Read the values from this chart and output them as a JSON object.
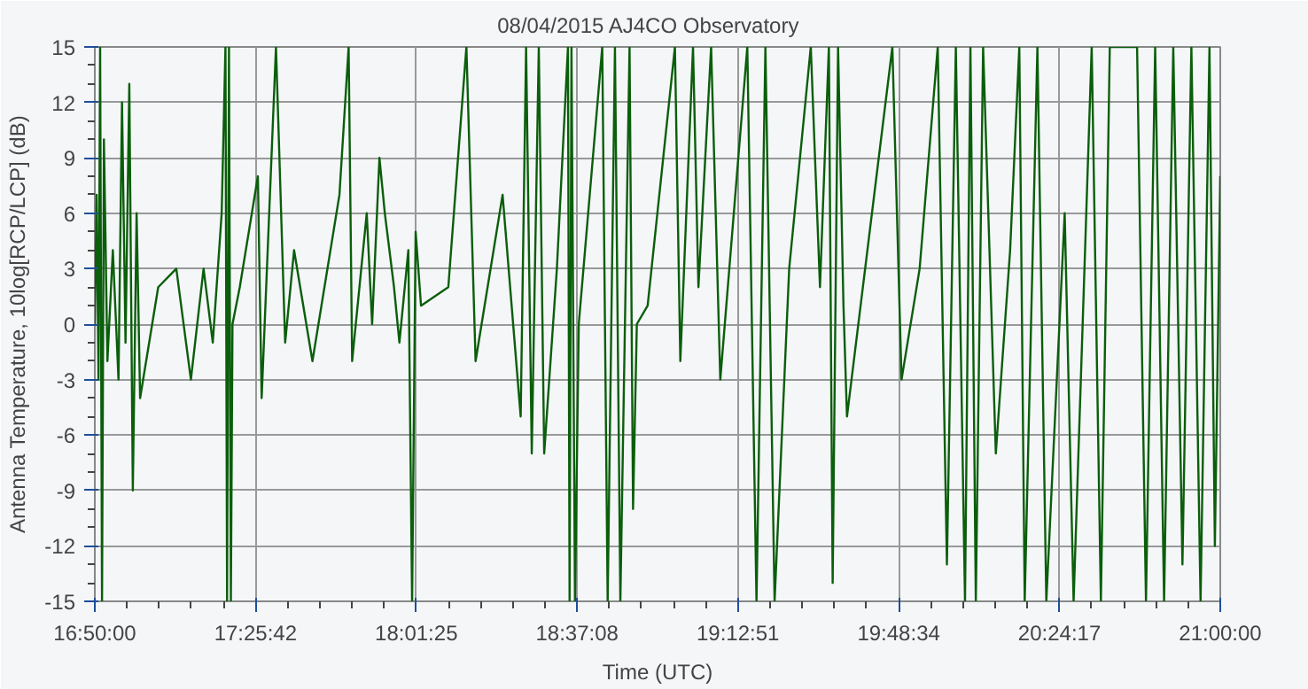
{
  "chart_data": {
    "type": "line",
    "title": "08/04/2015    AJ4CO Observatory",
    "xlabel": "Time (UTC)",
    "ylabel": "Antenna Temperature, 10log[RCP/LCP] (dB)",
    "x": [
      16.83333,
      16.84,
      16.847,
      16.853,
      16.86,
      16.867,
      16.88,
      16.9,
      16.921,
      16.934,
      16.947,
      16.961,
      16.974,
      16.988,
      17.001,
      17.068,
      17.135,
      17.189,
      17.236,
      17.27,
      17.303,
      17.317,
      17.323,
      17.33,
      17.337,
      17.343,
      17.37,
      17.437,
      17.451,
      17.504,
      17.538,
      17.571,
      17.639,
      17.739,
      17.773,
      17.786,
      17.84,
      17.86,
      17.887,
      17.907,
      17.941,
      17.961,
      17.994,
      18.008,
      18.021,
      18.041,
      18.142,
      18.209,
      18.243,
      18.343,
      18.41,
      18.43,
      18.451,
      18.477,
      18.497,
      18.544,
      18.585,
      18.591,
      18.598,
      18.611,
      18.625,
      18.712,
      18.732,
      18.759,
      18.779,
      18.813,
      18.826,
      18.84,
      18.88,
      18.981,
      19.001,
      19.048,
      19.068,
      19.115,
      19.149,
      19.249,
      19.283,
      19.316,
      19.35,
      19.404,
      19.484,
      19.518,
      19.551,
      19.565,
      19.585,
      19.605,
      19.618,
      19.786,
      19.82,
      19.887,
      19.954,
      19.988,
      20.021,
      20.055,
      20.075,
      20.095,
      20.122,
      20.169,
      20.222,
      20.256,
      20.276,
      20.323,
      20.356,
      20.424,
      20.457,
      20.524,
      20.558,
      20.591,
      20.692,
      20.725,
      20.759,
      20.792,
      20.826,
      20.86,
      20.893,
      20.927,
      20.96,
      20.98,
      21.0
    ],
    "series": [
      {
        "color": "#0b5e0b",
        "values": [
          0,
          7,
          -3,
          15,
          -15,
          10,
          -2,
          4,
          -3,
          12,
          -1,
          13,
          -9,
          6,
          -4,
          2,
          3,
          -3,
          3,
          -1,
          6,
          15,
          -15,
          15,
          -15,
          0,
          2,
          8,
          -4,
          15,
          -1,
          4,
          -2,
          7,
          15,
          -2,
          6,
          0,
          9,
          6,
          2,
          -1,
          4,
          -15,
          5,
          1,
          2,
          15,
          -2,
          7,
          -5,
          15,
          -7,
          15,
          -7,
          3,
          15,
          -15,
          15,
          -15,
          0,
          15,
          -15,
          15,
          -15,
          15,
          -10,
          0,
          1,
          15,
          -2,
          15,
          2,
          15,
          -3,
          15,
          -15,
          15,
          -15,
          3,
          15,
          2,
          15,
          -14,
          15,
          1,
          -5,
          15,
          -3,
          3,
          15,
          -13,
          15,
          -15,
          15,
          -15,
          15,
          -7,
          4,
          15,
          -15,
          15,
          -15,
          6,
          -15,
          15,
          -15,
          15,
          15,
          -15,
          15,
          -15,
          15,
          -13,
          15,
          -15,
          15,
          -12,
          8
        ]
      }
    ],
    "xlim": [
      16.83333,
      21.0
    ],
    "xticks": [
      {
        "value": 16.83333,
        "label": "16:50:00"
      },
      {
        "value": 17.428333,
        "label": "17:25:42"
      },
      {
        "value": 18.023611,
        "label": "18:01:25"
      },
      {
        "value": 18.618889,
        "label": "18:37:08"
      },
      {
        "value": 19.214167,
        "label": "19:12:51"
      },
      {
        "value": 19.809444,
        "label": "19:48:34"
      },
      {
        "value": 20.404722,
        "label": "20:24:17"
      },
      {
        "value": 21.0,
        "label": "21:00:00"
      }
    ],
    "ylim": [
      -15,
      15
    ],
    "yticks": [
      -15,
      -12,
      -9,
      -6,
      -3,
      0,
      3,
      6,
      9,
      12,
      15
    ],
    "grid": true,
    "line_style": "solid"
  }
}
